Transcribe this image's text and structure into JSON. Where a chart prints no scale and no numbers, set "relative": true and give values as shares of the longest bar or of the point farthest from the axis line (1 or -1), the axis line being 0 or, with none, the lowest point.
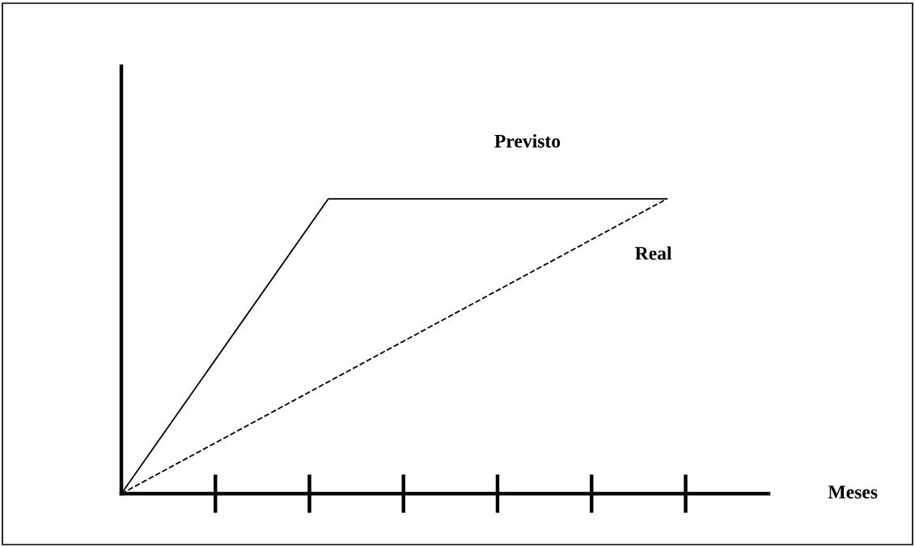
{
  "chart_data": {
    "type": "line",
    "relative": true,
    "annotations": [
      "Meses"
    ],
    "categories": [
      null,
      null,
      null,
      null,
      null,
      null,
      null,
      null,
      null,
      null,
      null,
      null,
      null,
      null,
      null,
      null,
      null,
      null,
      null,
      null,
      null,
      null,
      null,
      null,
      null,
      null,
      null,
      null,
      null,
      null,
      null
    ],
    "grid": false,
    "series": [
      {
        "name": "Previsto",
        "color": "#000000",
        "line_style": "solid",
        "values": [
          0,
          null,
          null,
          null,
          null,
          null,
          null,
          null,
          null,
          null,
          null,
          1,
          null,
          null,
          null,
          null,
          null,
          null,
          null,
          null,
          null,
          null,
          null,
          null,
          null,
          null,
          null,
          null,
          null,
          1,
          null
        ]
      },
      {
        "name": "Real",
        "color": "#000000",
        "line_style": "dashed",
        "values": [
          0,
          null,
          null,
          null,
          null,
          null,
          null,
          null,
          null,
          null,
          null,
          null,
          null,
          null,
          null,
          null,
          null,
          null,
          null,
          null,
          null,
          null,
          null,
          null,
          null,
          null,
          null,
          null,
          null,
          1,
          null
        ]
      }
    ]
  }
}
